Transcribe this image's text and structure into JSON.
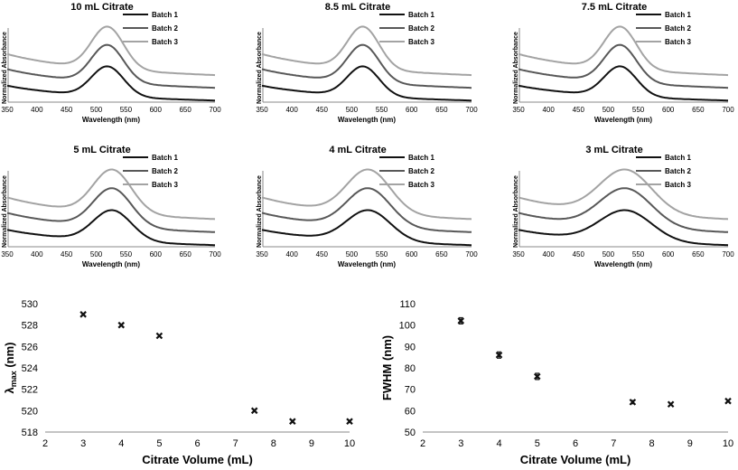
{
  "colors": {
    "batch1": "#111111",
    "batch2": "#585858",
    "batch3": "#a3a3a3",
    "axis": "#888888",
    "marker": "#111111"
  },
  "chart_data": [
    {
      "type": "line",
      "title": "10 mL Citrate",
      "xlabel": "Wavelength (nm)",
      "ylabel": "Normalized Absorbance",
      "xlim": [
        350,
        700
      ],
      "xticks": [
        350,
        400,
        450,
        500,
        550,
        600,
        650,
        700
      ],
      "legend": [
        "Batch 1",
        "Batch 2",
        "Batch 3"
      ],
      "peak_nm": 519,
      "fwhm_nm": 64
    },
    {
      "type": "line",
      "title": "8.5 mL Citrate",
      "xlabel": "Wavelength (nm)",
      "ylabel": "Normalized Absorbance",
      "xlim": [
        350,
        700
      ],
      "xticks": [
        350,
        400,
        450,
        500,
        550,
        600,
        650,
        700
      ],
      "legend": [
        "Batch 1",
        "Batch 2",
        "Batch 3"
      ],
      "peak_nm": 519,
      "fwhm_nm": 63
    },
    {
      "type": "line",
      "title": "7.5 mL Citrate",
      "xlabel": "Wavelength (nm)",
      "ylabel": "Normalized Absorbance",
      "xlim": [
        350,
        700
      ],
      "xticks": [
        350,
        400,
        450,
        500,
        550,
        600,
        650,
        700
      ],
      "legend": [
        "Batch 1",
        "Batch 2",
        "Batch 3"
      ],
      "peak_nm": 520,
      "fwhm_nm": 64
    },
    {
      "type": "line",
      "title": "5 mL Citrate",
      "xlabel": "Wavelength (nm)",
      "ylabel": "Normalized Absorbance",
      "xlim": [
        350,
        700
      ],
      "xticks": [
        350,
        400,
        450,
        500,
        550,
        600,
        650,
        700
      ],
      "legend": [
        "Batch 1",
        "Batch 2",
        "Batch 3"
      ],
      "peak_nm": 527,
      "fwhm_nm": 76
    },
    {
      "type": "line",
      "title": "4 mL Citrate",
      "xlabel": "Wavelength (nm)",
      "ylabel": "Normalized Absorbance",
      "xlim": [
        350,
        700
      ],
      "xticks": [
        350,
        400,
        450,
        500,
        550,
        600,
        650,
        700
      ],
      "legend": [
        "Batch 1",
        "Batch 2",
        "Batch 3"
      ],
      "peak_nm": 528,
      "fwhm_nm": 86
    },
    {
      "type": "line",
      "title": "3 mL Citrate",
      "xlabel": "Wavelength (nm)",
      "ylabel": "Normalized Absorbance",
      "xlim": [
        350,
        700
      ],
      "xticks": [
        350,
        400,
        450,
        500,
        550,
        600,
        650,
        700
      ],
      "legend": [
        "Batch 1",
        "Batch 2",
        "Batch 3"
      ],
      "peak_nm": 529,
      "fwhm_nm": 102
    },
    {
      "type": "scatter",
      "title": "",
      "xlabel": "Citrate Volume (mL)",
      "ylabel": "λmax (nm)",
      "ylabel_parts": {
        "symbol": "λ",
        "subscript": "max",
        "unit": "(nm)"
      },
      "xlim": [
        2,
        10
      ],
      "ylim": [
        518,
        530
      ],
      "xticks": [
        2,
        3,
        4,
        5,
        6,
        7,
        8,
        9,
        10
      ],
      "yticks": [
        518,
        520,
        522,
        524,
        526,
        528,
        530
      ],
      "x": [
        3,
        4,
        5,
        7.5,
        8.5,
        10
      ],
      "y": [
        529,
        528,
        527,
        520,
        519,
        519
      ]
    },
    {
      "type": "scatter",
      "title": "",
      "xlabel": "Citrate Volume (mL)",
      "ylabel": "FWHM (nm)",
      "xlim": [
        2,
        10
      ],
      "ylim": [
        50,
        110
      ],
      "xticks": [
        2,
        3,
        4,
        5,
        6,
        7,
        8,
        9,
        10
      ],
      "yticks": [
        50,
        60,
        70,
        80,
        90,
        100,
        110
      ],
      "x": [
        3,
        4,
        5,
        7.5,
        8.5,
        10
      ],
      "y": [
        102,
        86,
        76,
        64,
        63,
        64.5
      ],
      "error": [
        1.5,
        1.5,
        1.5,
        0.8,
        0.5,
        0.5
      ]
    }
  ]
}
